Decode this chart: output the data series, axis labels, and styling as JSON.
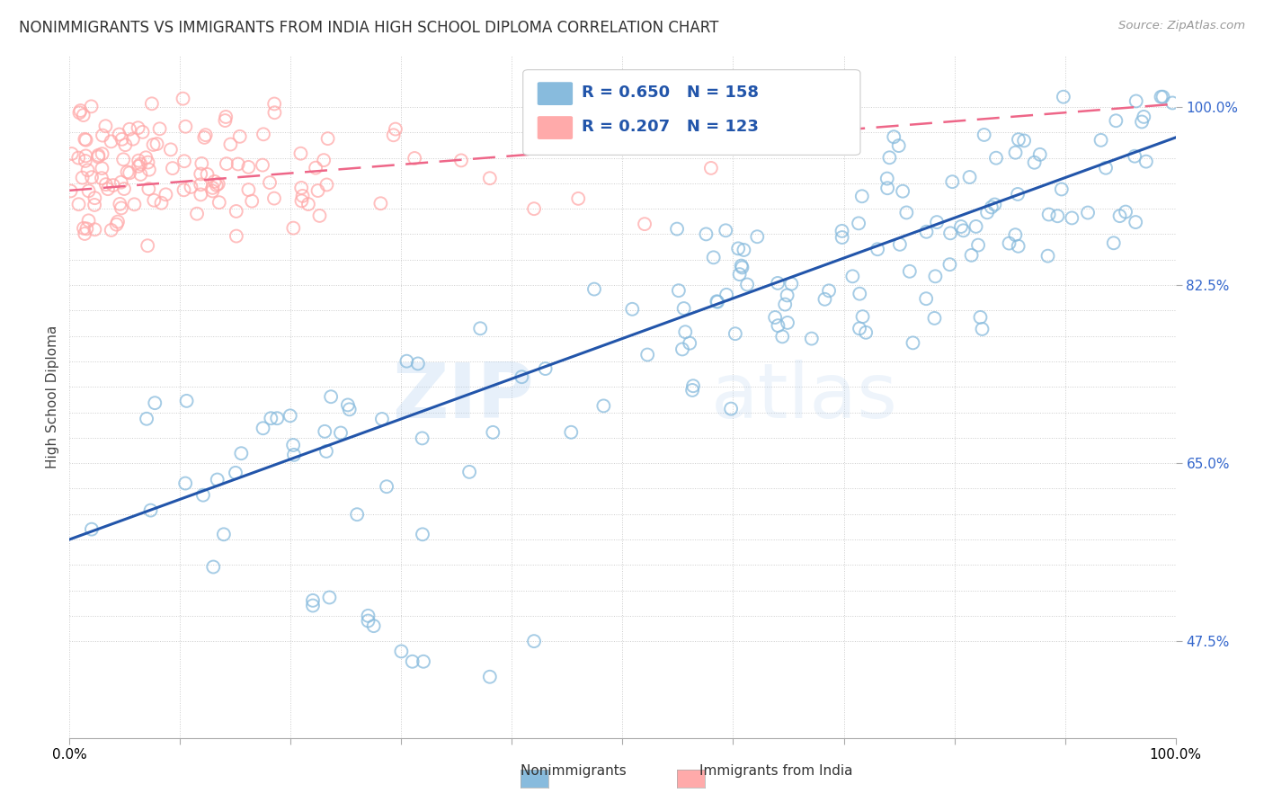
{
  "title": "NONIMMIGRANTS VS IMMIGRANTS FROM INDIA HIGH SCHOOL DIPLOMA CORRELATION CHART",
  "source": "Source: ZipAtlas.com",
  "ylabel": "High School Diploma",
  "xlim": [
    0.0,
    1.0
  ],
  "ylim": [
    0.38,
    1.05
  ],
  "blue_color": "#88BBDD",
  "pink_color": "#FFAAAA",
  "blue_edge_color": "#6699BB",
  "pink_edge_color": "#EE8899",
  "blue_line_color": "#2255AA",
  "pink_line_color": "#EE6688",
  "legend_r_blue": "0.650",
  "legend_n_blue": "158",
  "legend_r_pink": "0.207",
  "legend_n_pink": "123",
  "watermark_zip": "ZIP",
  "watermark_atlas": "atlas",
  "background_color": "#ffffff",
  "grid_color": "#cccccc",
  "title_fontsize": 12,
  "tick_label_color_y": "#3366CC",
  "tick_label_color_x": "#000000",
  "ytick_positions": [
    0.475,
    0.65,
    0.825,
    1.0
  ],
  "ytick_labels": [
    "47.5%",
    "65.0%",
    "82.5%",
    "100.0%"
  ],
  "grid_y": [
    0.475,
    0.5,
    0.525,
    0.55,
    0.575,
    0.6,
    0.625,
    0.65,
    0.675,
    0.7,
    0.725,
    0.75,
    0.775,
    0.8,
    0.825,
    0.85,
    0.875,
    0.9,
    0.925,
    0.95,
    0.975,
    1.0
  ],
  "grid_x": [
    0.0,
    0.1,
    0.2,
    0.3,
    0.4,
    0.5,
    0.6,
    0.7,
    0.8,
    0.9,
    1.0
  ]
}
